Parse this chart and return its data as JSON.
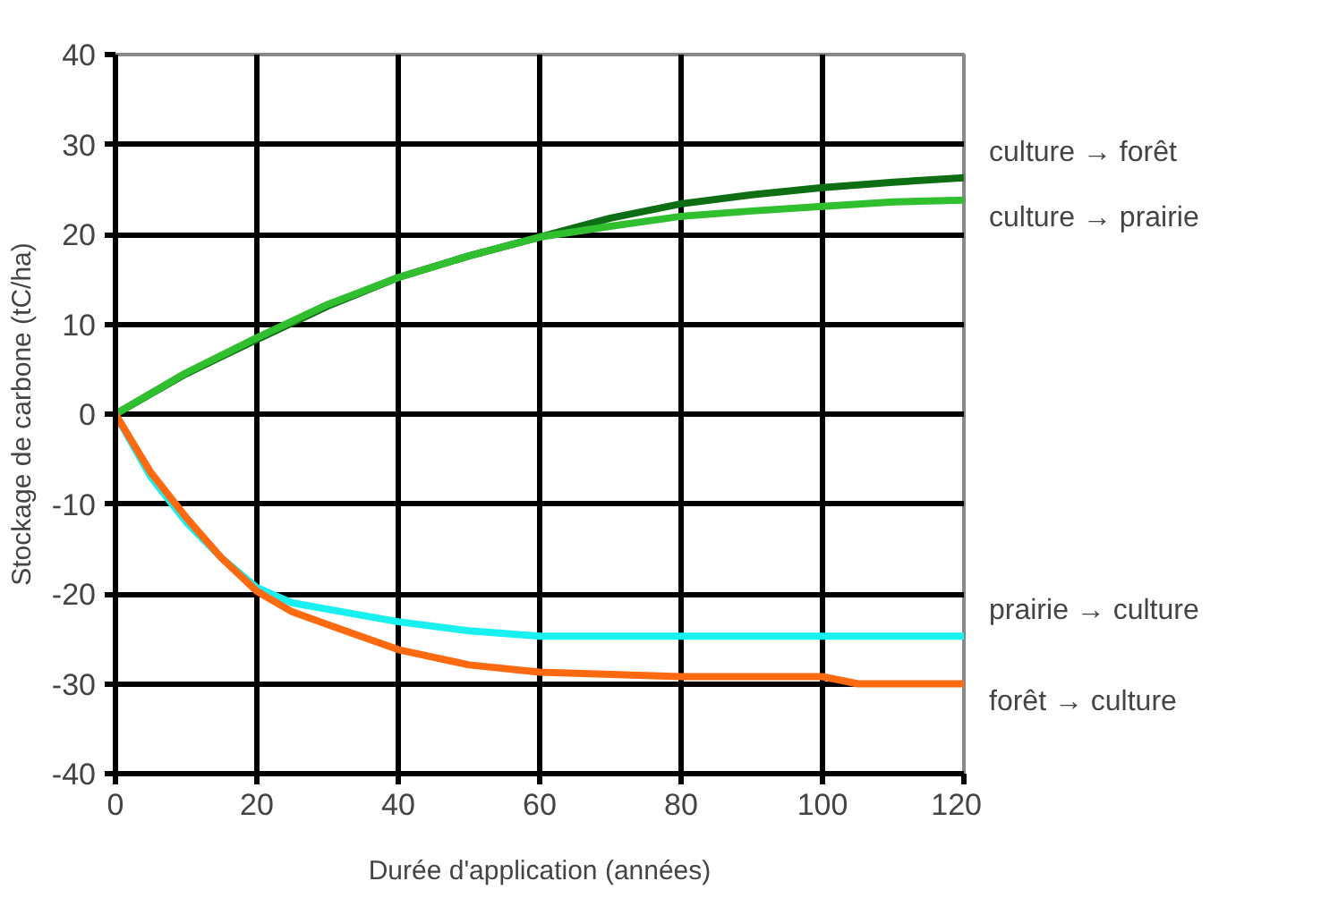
{
  "chart_data": {
    "type": "line",
    "xlabel": "Durée d'application (années)",
    "ylabel": "Stockage de carbone (tC/ha)",
    "xlim": [
      0,
      120
    ],
    "xticks": [
      0,
      20,
      40,
      60,
      80,
      100,
      120
    ],
    "ylim": [
      -40,
      40
    ],
    "yticks": [
      -40,
      -30,
      -20,
      -10,
      0,
      10,
      20,
      30,
      40
    ],
    "grid": true,
    "series": [
      {
        "name": "culture → forêt",
        "color": "#0e6e14",
        "x": [
          0,
          10,
          20,
          30,
          40,
          50,
          60,
          70,
          80,
          90,
          100,
          110,
          120
        ],
        "values": [
          0,
          4.5,
          8.3,
          12,
          15.2,
          17.6,
          19.7,
          21.8,
          23.4,
          24.4,
          25.2,
          25.8,
          26.3
        ]
      },
      {
        "name": "culture → prairie",
        "color": "#2fbf2f",
        "x": [
          0,
          10,
          20,
          30,
          40,
          50,
          60,
          70,
          80,
          90,
          100,
          110,
          120
        ],
        "values": [
          0,
          4.6,
          8.5,
          12.2,
          15.2,
          17.6,
          19.7,
          20.9,
          22,
          22.6,
          23.1,
          23.6,
          23.8
        ]
      },
      {
        "name": "prairie → culture",
        "color": "#19f0f0",
        "x": [
          0,
          5,
          10,
          15,
          20,
          25,
          30,
          40,
          50,
          60,
          80,
          100,
          120
        ],
        "values": [
          0,
          -7,
          -12,
          -16,
          -19.3,
          -21,
          -21.7,
          -23.1,
          -24.1,
          -24.7,
          -24.7,
          -24.7,
          -24.7
        ]
      },
      {
        "name": "forêt → culture",
        "color": "#ff6a10",
        "x": [
          0,
          5,
          10,
          15,
          20,
          25,
          30,
          40,
          50,
          60,
          80,
          100,
          105,
          120
        ],
        "values": [
          0,
          -6.5,
          -11.5,
          -16,
          -19.7,
          -22,
          -23.4,
          -26.2,
          -27.9,
          -28.7,
          -29.2,
          -29.2,
          -30,
          -30
        ]
      }
    ]
  }
}
